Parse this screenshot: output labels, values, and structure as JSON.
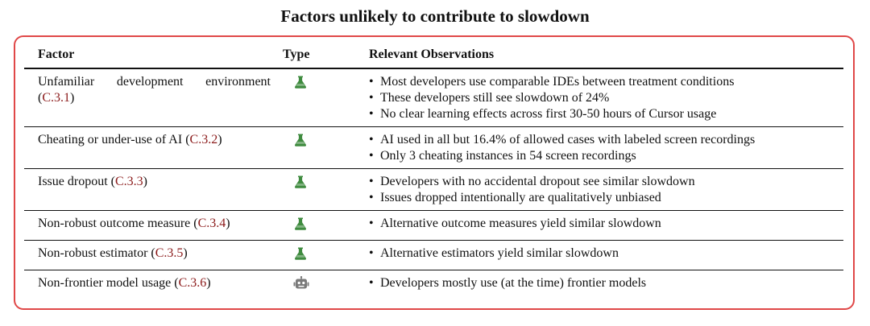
{
  "title": "Factors unlikely to contribute to slowdown",
  "colors": {
    "border": "#e04848",
    "reference": "#8b1a1a",
    "flask_icon": "#3f8b3f",
    "robot_icon": "#7a7a7a"
  },
  "table": {
    "headers": {
      "factor": "Factor",
      "type": "Type",
      "observations": "Relevant Observations"
    },
    "rows": [
      {
        "factor_line1": "Unfamiliar development environment",
        "factor": "",
        "ref": "C.3.1",
        "type_icon": "flask-icon",
        "observations": [
          "Most developers use comparable IDEs between treatment conditions",
          "These developers still see slowdown of 24%",
          "No clear learning effects across first 30-50 hours of Cursor usage"
        ]
      },
      {
        "factor": "Cheating or under-use of AI",
        "ref": "C.3.2",
        "type_icon": "flask-icon",
        "observations": [
          "AI used in all but 16.4% of allowed cases with labeled screen recordings",
          "Only 3 cheating instances in 54 screen recordings"
        ]
      },
      {
        "factor": "Issue dropout",
        "ref": "C.3.3",
        "type_icon": "flask-icon",
        "observations": [
          "Developers with no accidental dropout see similar slowdown",
          "Issues dropped intentionally are qualitatively unbiased"
        ]
      },
      {
        "factor": "Non-robust outcome measure",
        "ref": "C.3.4",
        "type_icon": "flask-icon",
        "observations": [
          "Alternative outcome measures yield similar slowdown"
        ]
      },
      {
        "factor": "Non-robust estimator",
        "ref": "C.3.5",
        "type_icon": "flask-icon",
        "observations": [
          "Alternative estimators yield similar slowdown"
        ]
      },
      {
        "factor": "Non-frontier model usage",
        "ref": "C.3.6",
        "type_icon": "robot-icon",
        "observations": [
          "Developers mostly use (at the time) frontier models"
        ]
      }
    ]
  }
}
